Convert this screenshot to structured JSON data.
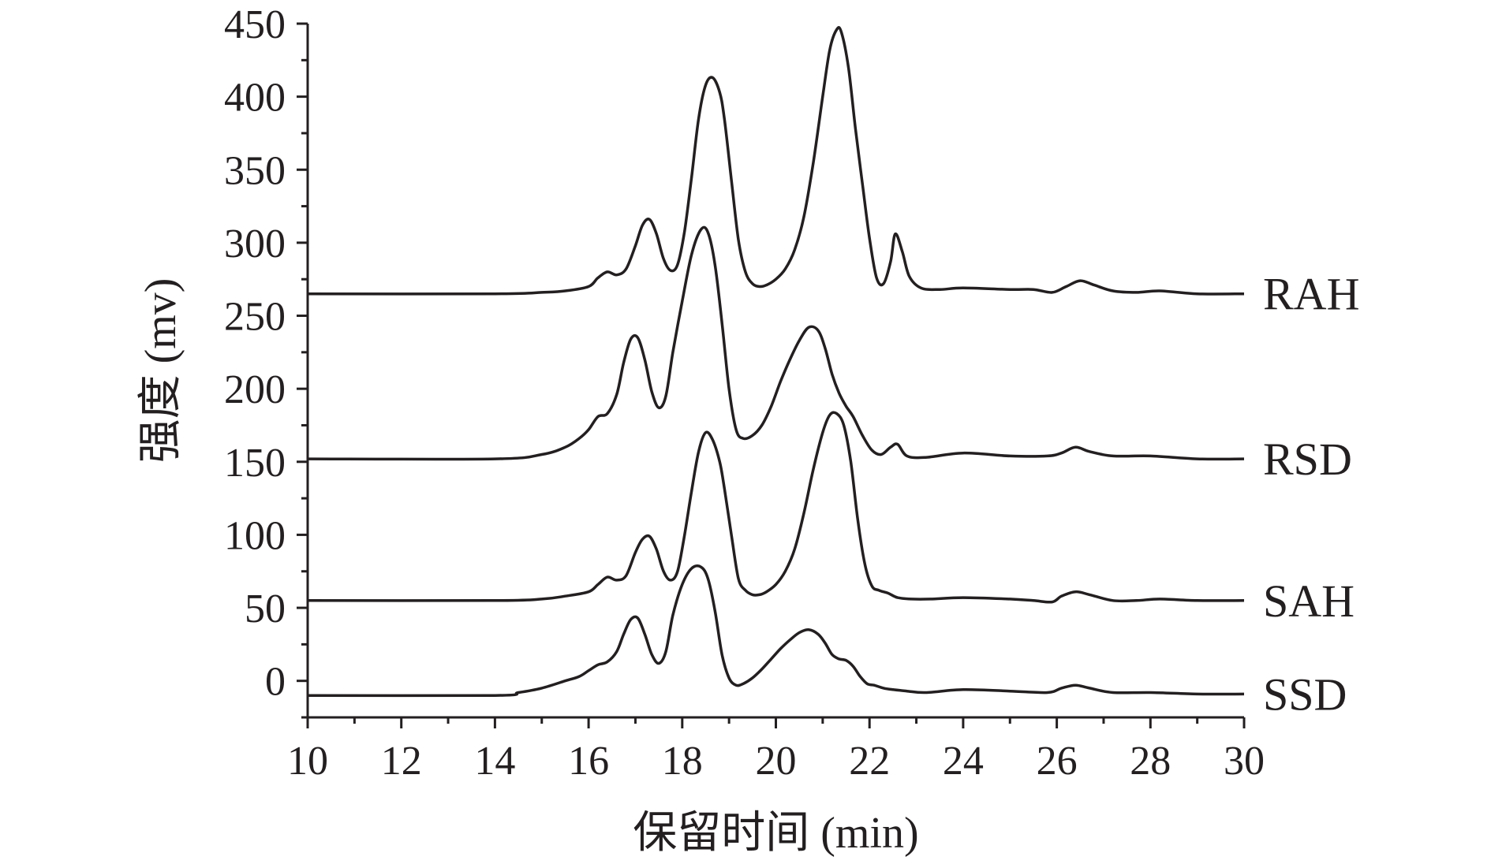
{
  "chart_data": {
    "type": "line",
    "xlabel": "保留时间 (min)",
    "ylabel": "强度 (mv)",
    "xlim": [
      10,
      30
    ],
    "ylim": [
      -25,
      450
    ],
    "x_ticks": [
      10,
      12,
      14,
      16,
      18,
      20,
      22,
      24,
      26,
      28,
      30
    ],
    "y_ticks": [
      0,
      50,
      100,
      150,
      200,
      250,
      300,
      350,
      400,
      450
    ],
    "grid": false,
    "legend": "inline labels at right end of each curve",
    "series": [
      {
        "name": "RAH",
        "x": [
          10,
          14,
          15,
          15.5,
          16,
          16.2,
          16.4,
          16.6,
          16.8,
          17,
          17.15,
          17.3,
          17.45,
          17.6,
          17.75,
          17.9,
          18.05,
          18.2,
          18.35,
          18.5,
          18.65,
          18.8,
          18.9,
          19.05,
          19.2,
          19.35,
          19.5,
          19.65,
          19.8,
          20,
          20.2,
          20.4,
          20.6,
          20.8,
          21,
          21.15,
          21.3,
          21.4,
          21.55,
          21.7,
          21.85,
          22,
          22.15,
          22.3,
          22.45,
          22.55,
          22.7,
          22.85,
          23.1,
          23.5,
          24,
          25,
          25.5,
          25.9,
          26.2,
          26.5,
          26.8,
          27.2,
          27.7,
          28.2,
          29,
          30
        ],
        "values": [
          265,
          265,
          266,
          267,
          270,
          276,
          280,
          278,
          282,
          298,
          312,
          316,
          306,
          289,
          281,
          285,
          308,
          345,
          385,
          408,
          413,
          403,
          385,
          343,
          302,
          280,
          272,
          270,
          271,
          275,
          282,
          295,
          318,
          355,
          400,
          432,
          446,
          444,
          420,
          378,
          340,
          303,
          276,
          272,
          287,
          306,
          294,
          277,
          269,
          268,
          269,
          268,
          268,
          266,
          270,
          274,
          271,
          267,
          266,
          267,
          265,
          265
        ]
      },
      {
        "name": "RSD",
        "x": [
          10,
          14,
          15,
          15.5,
          15.8,
          16,
          16.2,
          16.4,
          16.6,
          16.75,
          16.9,
          17.05,
          17.2,
          17.35,
          17.5,
          17.65,
          17.8,
          18,
          18.2,
          18.4,
          18.55,
          18.7,
          18.85,
          19,
          19.15,
          19.3,
          19.5,
          19.7,
          19.9,
          20.1,
          20.3,
          20.5,
          20.7,
          20.9,
          21.05,
          21.2,
          21.35,
          21.5,
          21.65,
          21.85,
          22.05,
          22.25,
          22.45,
          22.6,
          22.8,
          23.2,
          24,
          25,
          25.8,
          26.1,
          26.4,
          26.7,
          27.2,
          28,
          29,
          30
        ],
        "values": [
          152,
          152,
          155,
          160,
          166,
          172,
          181,
          183,
          196,
          218,
          234,
          235,
          220,
          198,
          187,
          195,
          225,
          260,
          292,
          309,
          307,
          285,
          245,
          200,
          172,
          166,
          168,
          175,
          188,
          205,
          220,
          233,
          242,
          240,
          228,
          210,
          197,
          188,
          181,
          168,
          158,
          155,
          160,
          162,
          154,
          153,
          156,
          154,
          154,
          156,
          160,
          157,
          154,
          154,
          152,
          152
        ]
      },
      {
        "name": "SAH",
        "x": [
          10,
          14,
          15,
          15.5,
          16,
          16.2,
          16.4,
          16.6,
          16.8,
          17,
          17.15,
          17.3,
          17.45,
          17.6,
          17.75,
          17.9,
          18.05,
          18.2,
          18.35,
          18.5,
          18.65,
          18.8,
          18.9,
          19.05,
          19.2,
          19.35,
          19.5,
          19.65,
          19.8,
          20,
          20.2,
          20.4,
          20.6,
          20.8,
          21,
          21.15,
          21.3,
          21.45,
          21.6,
          21.75,
          21.9,
          22.05,
          22.2,
          22.4,
          22.6,
          22.9,
          23.3,
          24,
          25,
          25.5,
          25.9,
          26.1,
          26.4,
          26.7,
          27.2,
          27.7,
          28.2,
          29,
          30
        ],
        "values": [
          55,
          55,
          56,
          58,
          61,
          66,
          71,
          69,
          72,
          88,
          97,
          99,
          90,
          75,
          69,
          75,
          100,
          130,
          157,
          170,
          165,
          150,
          132,
          100,
          70,
          62,
          59,
          59,
          61,
          66,
          75,
          90,
          115,
          145,
          170,
          182,
          183,
          175,
          150,
          110,
          80,
          65,
          62,
          60,
          57,
          56,
          56,
          57,
          56,
          55,
          54,
          58,
          61,
          59,
          55,
          55,
          56,
          55,
          55
        ]
      },
      {
        "name": "SSD",
        "x": [
          10,
          14,
          14.5,
          15,
          15.5,
          15.8,
          16,
          16.2,
          16.4,
          16.6,
          16.75,
          16.9,
          17.05,
          17.2,
          17.35,
          17.5,
          17.65,
          17.8,
          18,
          18.2,
          18.4,
          18.55,
          18.7,
          18.85,
          19,
          19.15,
          19.3,
          19.5,
          19.7,
          19.9,
          20.1,
          20.3,
          20.5,
          20.7,
          20.9,
          21.05,
          21.2,
          21.35,
          21.5,
          21.65,
          21.8,
          21.95,
          22.1,
          22.3,
          22.5,
          22.8,
          23.2,
          24,
          25,
          25.8,
          26.1,
          26.4,
          26.7,
          27.2,
          28,
          29,
          30
        ],
        "values": [
          -10,
          -10,
          -8,
          -5,
          0,
          3,
          7,
          11,
          13,
          20,
          32,
          42,
          43,
          32,
          18,
          12,
          20,
          45,
          66,
          77,
          78,
          70,
          48,
          18,
          2,
          -3,
          -2,
          2,
          8,
          15,
          22,
          28,
          33,
          35,
          32,
          26,
          18,
          15,
          14,
          10,
          3,
          -2,
          -3,
          -5,
          -6,
          -7,
          -8,
          -6,
          -7,
          -8,
          -5,
          -3,
          -5,
          -8,
          -8,
          -9,
          -9
        ]
      }
    ]
  }
}
